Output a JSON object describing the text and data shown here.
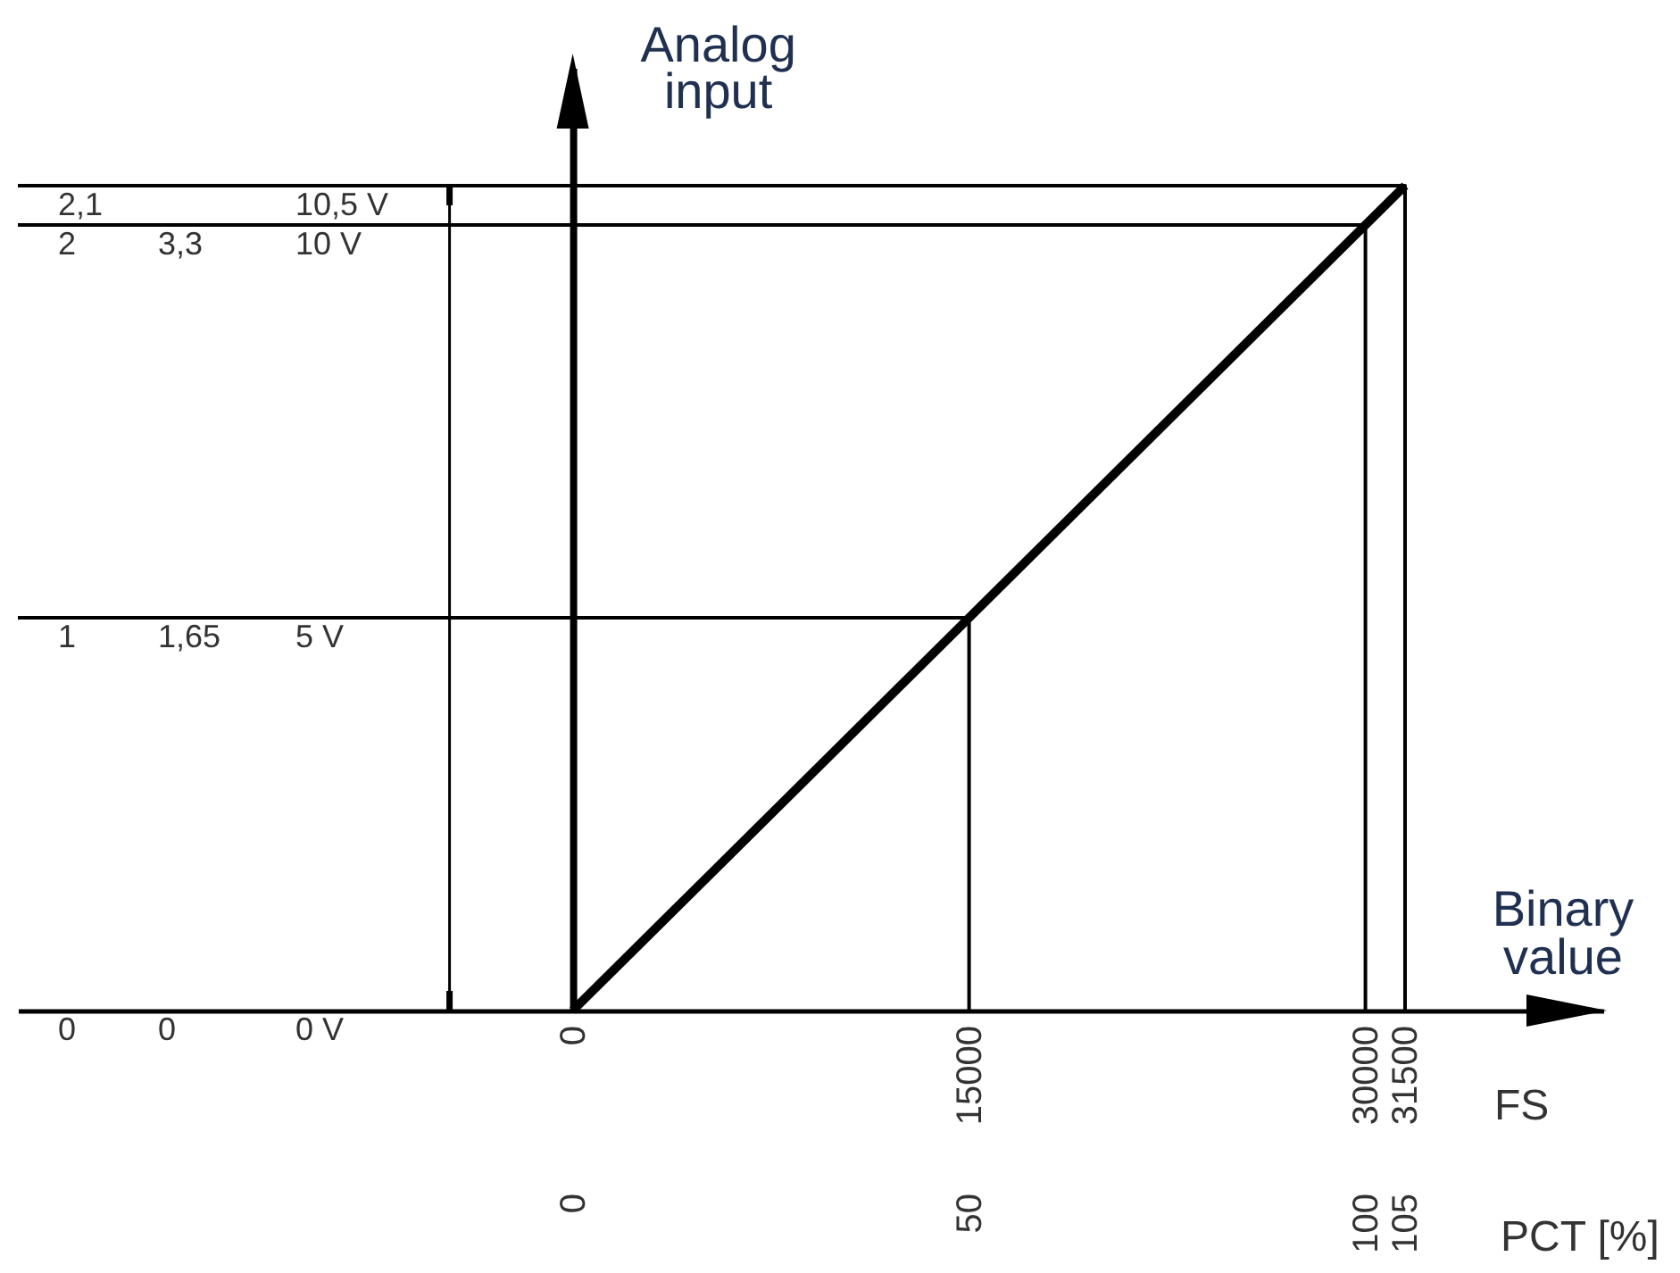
{
  "chart_data": {
    "type": "line",
    "xlabel": "Binary value",
    "x2label": "PCT [%]",
    "ylabel": "Analog input",
    "annotations": [
      "FS"
    ],
    "xlim": [
      -21000,
      39000
    ],
    "xticks": [
      0,
      15000,
      30000,
      31500
    ],
    "x2lim": [
      -70,
      130
    ],
    "x2ticks": [
      0,
      50,
      100,
      105
    ],
    "ylim": [
      0,
      12
    ],
    "yticks": [
      {
        "value": 0,
        "label": "0 V"
      },
      {
        "value": 5,
        "label": "5 V"
      },
      {
        "value": 10,
        "label": "10 V"
      },
      {
        "value": 10.5,
        "label": "10,5 V"
      }
    ],
    "y2lim": [
      0,
      2.4
    ],
    "y2ticks": [
      0,
      1,
      2,
      {
        "value": 2.1,
        "label": "2,1"
      }
    ],
    "y3lim": [
      0,
      3.96
    ],
    "y3ticks": [
      0,
      {
        "value": 1.65,
        "label": "1,65"
      },
      {
        "value": 3.3,
        "label": "3,3"
      }
    ],
    "series": [
      {
        "color": "#000000",
        "x": [
          0,
          31500
        ],
        "values": [
          0,
          10.5
        ]
      },
      {
        "color": "#000000",
        "x": [
          -21000,
          15000,
          15000
        ],
        "values": [
          5,
          5,
          0
        ]
      },
      {
        "color": "#000000",
        "x": [
          -21000,
          30000,
          30000
        ],
        "values": [
          10,
          10,
          0
        ]
      },
      {
        "color": "#000000",
        "x": [
          -21000,
          31500,
          31500
        ],
        "values": [
          10.5,
          10.5,
          0
        ]
      }
    ]
  }
}
